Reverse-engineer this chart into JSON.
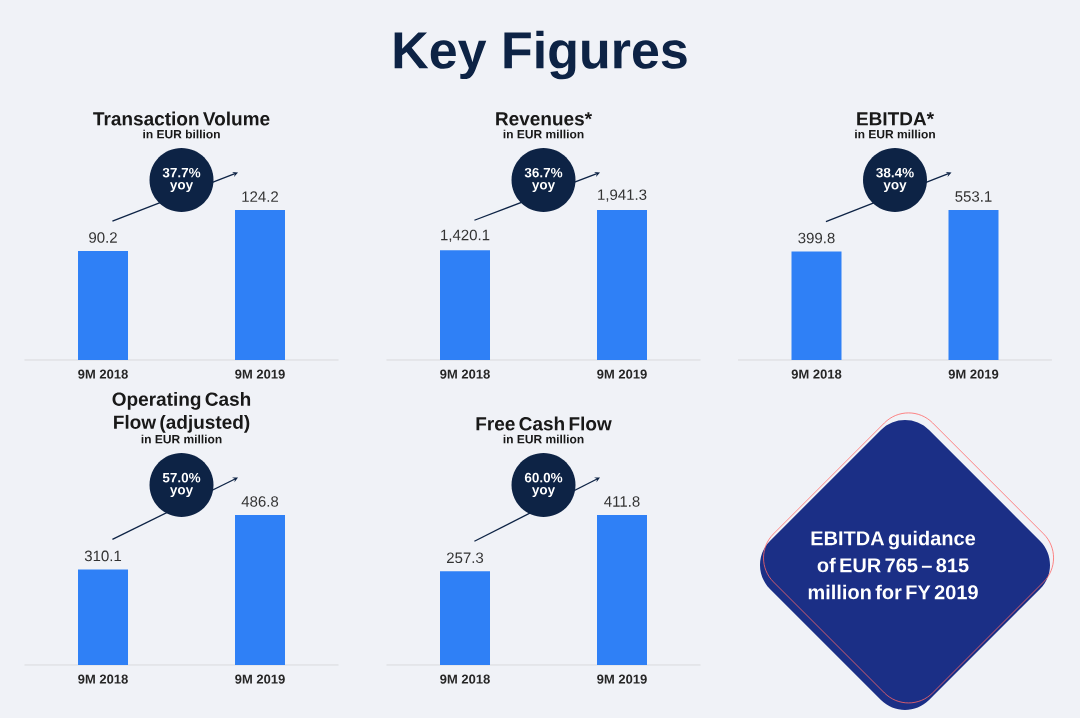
{
  "chart_data": [
    {
      "type": "other",
      "title": "Key Figures"
    },
    {
      "type": "bar",
      "title": "Transaction Volume",
      "subtitle": "in EUR billion",
      "categories": [
        "9M 2018",
        "9M 2019"
      ],
      "values": [
        90.2,
        124.2
      ],
      "value_labels": [
        "90.2",
        "124.2"
      ],
      "color": "#2f80f6",
      "annotations": [
        "37.7% yoy"
      ]
    },
    {
      "type": "bar",
      "title": "Revenues*",
      "subtitle": "in EUR million",
      "categories": [
        "9M 2018",
        "9M 2019"
      ],
      "values": [
        1420.1,
        1941.3
      ],
      "value_labels": [
        "1,420.1",
        "1,941.3"
      ],
      "color": "#2f80f6",
      "annotations": [
        "36.7% yoy"
      ]
    },
    {
      "type": "bar",
      "title": "EBITDA*",
      "subtitle": "in EUR million",
      "categories": [
        "9M 2018",
        "9M 2019"
      ],
      "values": [
        399.8,
        553.1
      ],
      "value_labels": [
        "399.8",
        "553.1"
      ],
      "color": "#2f80f6",
      "annotations": [
        "38.4% yoy"
      ]
    },
    {
      "type": "bar",
      "title": "Operating Cash Flow (adjusted)",
      "subtitle": "in EUR million",
      "categories": [
        "9M 2018",
        "9M 2019"
      ],
      "values": [
        310.1,
        486.8
      ],
      "value_labels": [
        "310.1",
        "486.8"
      ],
      "color": "#2f80f6",
      "annotations": [
        "57.0% yoy"
      ]
    },
    {
      "type": "bar",
      "title": "Free Cash Flow",
      "subtitle": "in EUR million",
      "categories": [
        "9M 2018",
        "9M 2019"
      ],
      "values": [
        257.3,
        411.8
      ],
      "value_labels": [
        "257.3",
        "411.8"
      ],
      "color": "#2f80f6",
      "annotations": [
        "60.0% yoy"
      ]
    },
    {
      "type": "other",
      "annotations": [
        "EBITDA guidance of EUR 765 – 815 million for FY 2019"
      ]
    }
  ]
}
